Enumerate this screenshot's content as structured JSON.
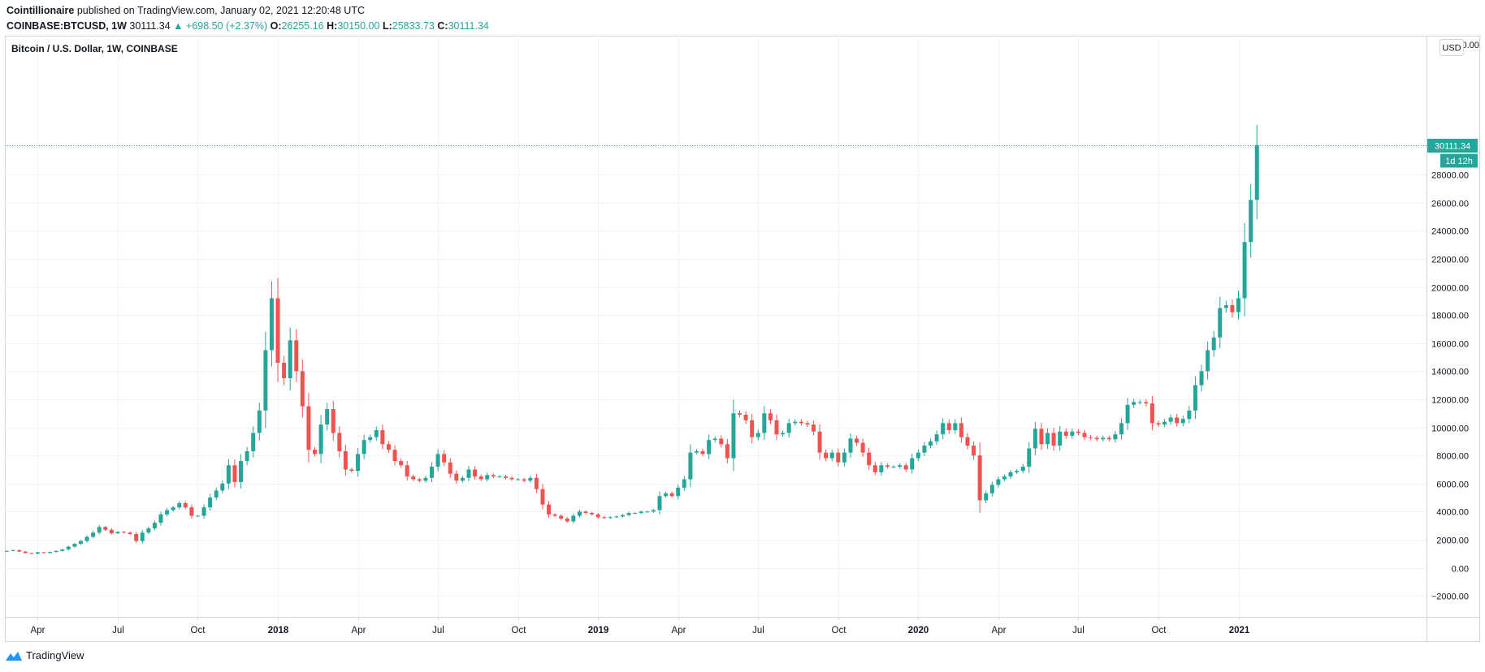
{
  "header": {
    "author": "Cointillionaire",
    "published": "published on TradingView.com, January 02, 2021 12:20:48 UTC",
    "symbol": "COINBASE:BTCUSD, 1W",
    "last": "30111.34",
    "change_arrow": "▲",
    "change": "+698.50 (+2.37%)",
    "o_label": "O:",
    "o_value": "26255.16",
    "h_label": "H:",
    "h_value": "30150.00",
    "l_label": "L:",
    "l_value": "25833.73",
    "c_label": "C:",
    "c_value": "30111.34"
  },
  "footer": {
    "brand": "TradingView",
    "logo_icon": "tradingview-logo-icon"
  },
  "chart_data": {
    "type": "candlestick",
    "title": "Bitcoin / U.S. Dollar, 1W, COINBASE",
    "currency_label": "USD",
    "top_label_partial": "32000.00",
    "last_price_label": "30111.34",
    "countdown_label": "1d 12h",
    "last_price": 30111.34,
    "ylim": [
      -3000,
      33000
    ],
    "y_ticks": [
      {
        "value": 28000,
        "label": "28000.00"
      },
      {
        "value": 26000,
        "label": "26000.00"
      },
      {
        "value": 24000,
        "label": "24000.00"
      },
      {
        "value": 22000,
        "label": "22000.00"
      },
      {
        "value": 20000,
        "label": "20000.00"
      },
      {
        "value": 18000,
        "label": "18000.00"
      },
      {
        "value": 16000,
        "label": "16000.00"
      },
      {
        "value": 14000,
        "label": "14000.00"
      },
      {
        "value": 12000,
        "label": "12000.00"
      },
      {
        "value": 10000,
        "label": "10000.00"
      },
      {
        "value": 8000,
        "label": "8000.00"
      },
      {
        "value": 6000,
        "label": "6000.00"
      },
      {
        "value": 4000,
        "label": "4000.00"
      },
      {
        "value": 2000,
        "label": "2000.00"
      },
      {
        "value": 0,
        "label": "0.00"
      },
      {
        "value": -2000,
        "label": "−2000.00"
      }
    ],
    "x_ticks": [
      {
        "index": 5,
        "label": "Apr",
        "bold": false
      },
      {
        "index": 18,
        "label": "Jul",
        "bold": false
      },
      {
        "index": 31,
        "label": "Oct",
        "bold": false
      },
      {
        "index": 44,
        "label": "2018",
        "bold": true
      },
      {
        "index": 57,
        "label": "Apr",
        "bold": false
      },
      {
        "index": 70,
        "label": "Jul",
        "bold": false
      },
      {
        "index": 83,
        "label": "Oct",
        "bold": false
      },
      {
        "index": 96,
        "label": "2019",
        "bold": true
      },
      {
        "index": 109,
        "label": "Apr",
        "bold": false
      },
      {
        "index": 122,
        "label": "Jul",
        "bold": false
      },
      {
        "index": 135,
        "label": "Oct",
        "bold": false
      },
      {
        "index": 148,
        "label": "2020",
        "bold": true
      },
      {
        "index": 161,
        "label": "Apr",
        "bold": false
      },
      {
        "index": 174,
        "label": "Jul",
        "bold": false
      },
      {
        "index": 187,
        "label": "Oct",
        "bold": false
      },
      {
        "index": 200,
        "label": "2021",
        "bold": true
      }
    ],
    "closes": [
      1200,
      1250,
      1150,
      1050,
      1000,
      1100,
      1050,
      1120,
      1200,
      1300,
      1500,
      1700,
      1900,
      2200,
      2500,
      2900,
      2700,
      2450,
      2550,
      2500,
      2400,
      1900,
      2500,
      2800,
      3200,
      3800,
      4100,
      4300,
      4600,
      4300,
      3700,
      3700,
      4300,
      5000,
      5500,
      6000,
      7300,
      6100,
      7600,
      8300,
      9600,
      11200,
      15500,
      19200,
      14600,
      13500,
      16200,
      14000,
      11500,
      8400,
      8100,
      10200,
      11300,
      9600,
      8300,
      7000,
      6900,
      8100,
      9100,
      9300,
      9800,
      8800,
      8400,
      7600,
      7300,
      6500,
      6300,
      6200,
      6400,
      7200,
      8100,
      7500,
      6700,
      6200,
      6400,
      7000,
      6500,
      6300,
      6600,
      6500,
      6500,
      6400,
      6300,
      6300,
      6200,
      6400,
      5600,
      4500,
      3800,
      3700,
      3500,
      3300,
      3700,
      4000,
      3900,
      3800,
      3600,
      3550,
      3600,
      3650,
      3750,
      3900,
      3900,
      4000,
      4000,
      4100,
      5100,
      5300,
      5100,
      5700,
      6300,
      8200,
      8300,
      8100,
      9100,
      9200,
      8800,
      7800,
      11000,
      10900,
      10500,
      9300,
      9600,
      11000,
      10500,
      9500,
      9600,
      10300,
      10400,
      10300,
      10200,
      9700,
      8200,
      7800,
      8200,
      7500,
      8200,
      9200,
      8900,
      8200,
      7300,
      6800,
      7300,
      7200,
      7200,
      7300,
      7000,
      7800,
      8200,
      8700,
      9000,
      9500,
      10300,
      9800,
      10300,
      9300,
      8700,
      8000,
      4800,
      5300,
      5900,
      6300,
      6500,
      6800,
      6900,
      7200,
      8500,
      9900,
      8800,
      9600,
      8700,
      9700,
      9400,
      9700,
      9600,
      9300,
      9250,
      9150,
      9250,
      9150,
      9500,
      10300,
      11600,
      11800,
      11800,
      11700,
      10300,
      10200,
      10400,
      10700,
      10300,
      10600,
      11200,
      13000,
      14000,
      15500,
      16400,
      18500,
      18700,
      18200,
      19200,
      23200,
      26200,
      30111.34
    ],
    "candles_note": "open = previous close; highs/lows approximated"
  }
}
